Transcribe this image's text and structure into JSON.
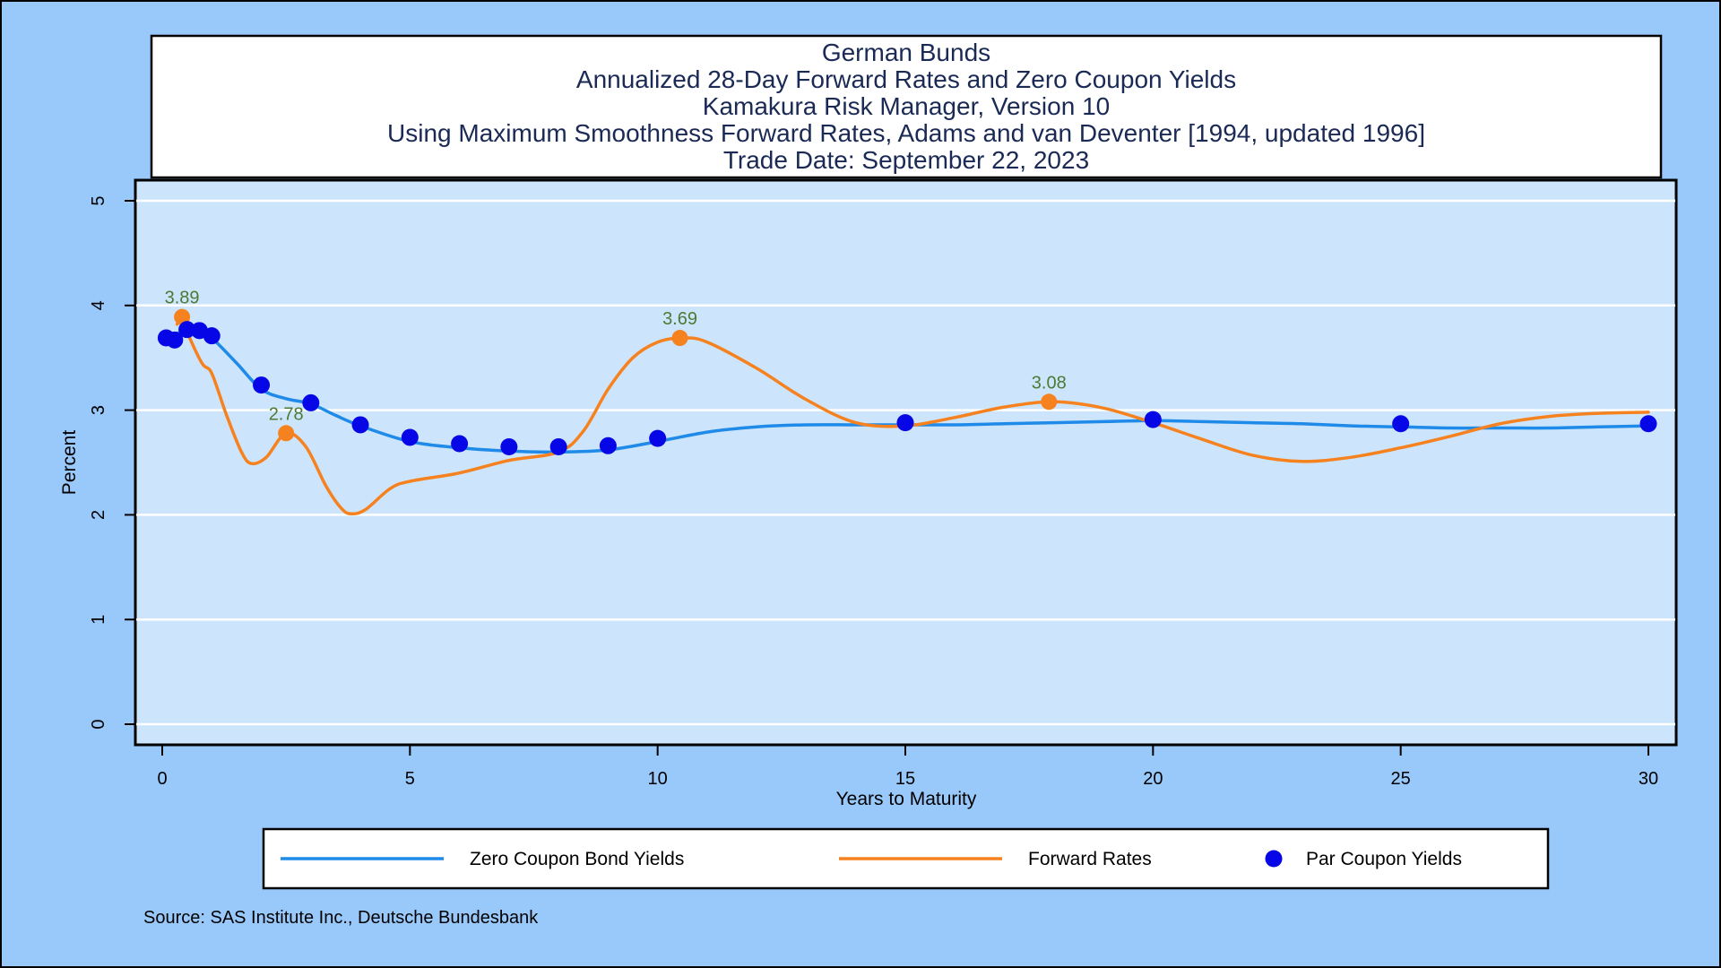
{
  "chart_data": {
    "type": "line",
    "title_lines": [
      "German Bunds",
      "Annualized 28-Day Forward Rates and Zero Coupon Yields",
      "Kamakura Risk Manager, Version 10",
      "Using Maximum Smoothness Forward Rates, Adams and van Deventer [1994, updated 1996]",
      "Trade Date: September 22, 2023"
    ],
    "xlabel": "Years to Maturity",
    "ylabel": "Percent",
    "xlim": [
      0,
      30
    ],
    "ylim": [
      0,
      5
    ],
    "xticks": [
      0,
      5,
      10,
      15,
      20,
      25,
      30
    ],
    "yticks": [
      0,
      1,
      2,
      3,
      4,
      5
    ],
    "grid": "horizontal",
    "legend_position": "bottom",
    "series": [
      {
        "name": "Zero Coupon Bond Yields",
        "kind": "line",
        "color": "#1f8ae8",
        "points": [
          [
            0.08,
            3.69
          ],
          [
            0.25,
            3.72
          ],
          [
            0.5,
            3.77
          ],
          [
            0.75,
            3.76
          ],
          [
            1.0,
            3.69
          ],
          [
            1.5,
            3.45
          ],
          [
            2.0,
            3.2
          ],
          [
            2.5,
            3.11
          ],
          [
            3.0,
            3.06
          ],
          [
            3.5,
            2.95
          ],
          [
            4.0,
            2.85
          ],
          [
            5.0,
            2.7
          ],
          [
            6.0,
            2.64
          ],
          [
            7.0,
            2.61
          ],
          [
            8.0,
            2.6
          ],
          [
            9.0,
            2.62
          ],
          [
            10.0,
            2.7
          ],
          [
            11.0,
            2.79
          ],
          [
            12.0,
            2.84
          ],
          [
            13.0,
            2.86
          ],
          [
            14.0,
            2.86
          ],
          [
            15.0,
            2.86
          ],
          [
            16.0,
            2.86
          ],
          [
            17.0,
            2.87
          ],
          [
            18.0,
            2.88
          ],
          [
            19.0,
            2.89
          ],
          [
            20.0,
            2.9
          ],
          [
            21.0,
            2.89
          ],
          [
            22.0,
            2.88
          ],
          [
            23.0,
            2.87
          ],
          [
            24.0,
            2.85
          ],
          [
            25.0,
            2.84
          ],
          [
            26.0,
            2.83
          ],
          [
            27.0,
            2.83
          ],
          [
            28.0,
            2.83
          ],
          [
            29.0,
            2.84
          ],
          [
            30.0,
            2.85
          ]
        ]
      },
      {
        "name": "Forward Rates",
        "kind": "line",
        "color": "#f6821f",
        "points": [
          [
            0.3,
            3.82
          ],
          [
            0.4,
            3.89
          ],
          [
            0.5,
            3.75
          ],
          [
            0.8,
            3.45
          ],
          [
            1.0,
            3.35
          ],
          [
            1.3,
            2.95
          ],
          [
            1.6,
            2.6
          ],
          [
            1.8,
            2.49
          ],
          [
            2.1,
            2.55
          ],
          [
            2.5,
            2.78
          ],
          [
            2.9,
            2.65
          ],
          [
            3.3,
            2.28
          ],
          [
            3.6,
            2.07
          ],
          [
            3.8,
            2.01
          ],
          [
            4.1,
            2.05
          ],
          [
            4.6,
            2.25
          ],
          [
            5.0,
            2.32
          ],
          [
            6.0,
            2.4
          ],
          [
            7.0,
            2.52
          ],
          [
            8.0,
            2.6
          ],
          [
            8.5,
            2.8
          ],
          [
            9.0,
            3.2
          ],
          [
            9.5,
            3.5
          ],
          [
            10.0,
            3.65
          ],
          [
            10.5,
            3.69
          ],
          [
            11.0,
            3.65
          ],
          [
            12.0,
            3.4
          ],
          [
            13.0,
            3.1
          ],
          [
            14.0,
            2.88
          ],
          [
            15.0,
            2.85
          ],
          [
            16.0,
            2.93
          ],
          [
            17.0,
            3.03
          ],
          [
            18.0,
            3.08
          ],
          [
            19.0,
            3.02
          ],
          [
            20.0,
            2.88
          ],
          [
            21.0,
            2.72
          ],
          [
            22.0,
            2.57
          ],
          [
            23.0,
            2.51
          ],
          [
            24.0,
            2.55
          ],
          [
            25.0,
            2.64
          ],
          [
            26.0,
            2.75
          ],
          [
            27.0,
            2.87
          ],
          [
            28.0,
            2.94
          ],
          [
            29.0,
            2.97
          ],
          [
            30.0,
            2.98
          ]
        ],
        "markers": [
          {
            "x": 0.4,
            "y": 3.89,
            "label": "3.89"
          },
          {
            "x": 2.5,
            "y": 2.78,
            "label": "2.78"
          },
          {
            "x": 10.45,
            "y": 3.69,
            "label": "3.69"
          },
          {
            "x": 17.9,
            "y": 3.08,
            "label": "3.08"
          }
        ]
      },
      {
        "name": "Par Coupon Yields",
        "kind": "scatter",
        "color": "#0606e6",
        "points": [
          [
            0.08,
            3.69
          ],
          [
            0.25,
            3.67
          ],
          [
            0.5,
            3.77
          ],
          [
            0.75,
            3.76
          ],
          [
            1.0,
            3.71
          ],
          [
            2.0,
            3.24
          ],
          [
            3.0,
            3.07
          ],
          [
            4.0,
            2.86
          ],
          [
            5.0,
            2.74
          ],
          [
            6.0,
            2.68
          ],
          [
            7.0,
            2.65
          ],
          [
            8.0,
            2.65
          ],
          [
            9.0,
            2.66
          ],
          [
            10.0,
            2.73
          ],
          [
            15.0,
            2.88
          ],
          [
            20.0,
            2.91
          ],
          [
            25.0,
            2.87
          ],
          [
            30.0,
            2.87
          ]
        ]
      }
    ],
    "source": "Source: SAS Institute Inc., Deutsche Bundesbank"
  }
}
